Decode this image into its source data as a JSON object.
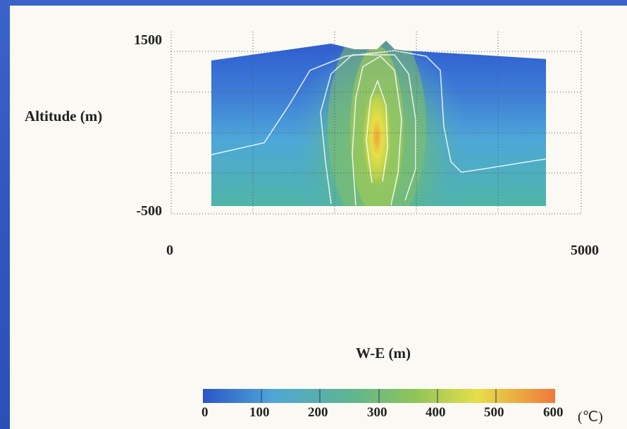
{
  "chart_data": {
    "type": "heatmap",
    "title": "",
    "xlabel": "W-E (m)",
    "ylabel": "Altitude (m)",
    "x_ticks": [
      "0",
      "5000"
    ],
    "y_ticks": [
      "1500",
      "-500"
    ],
    "xlim": [
      0,
      5000
    ],
    "ylim": [
      -500,
      1500
    ],
    "variable": "temperature",
    "colorbar": {
      "unit": "(℃)",
      "ticks": [
        "0",
        "100",
        "200",
        "300",
        "400",
        "500",
        "600"
      ],
      "range": [
        0,
        600
      ],
      "colors": [
        "#2a56c8",
        "#4fa6d6",
        "#5fb58f",
        "#8fc45a",
        "#e6df48",
        "#ef7a3b"
      ]
    },
    "contours_shown": true,
    "grid": true,
    "contour_levels_approx": [
      100,
      200,
      300,
      400
    ],
    "field_summary": {
      "peak_temperature_approx": 500,
      "peak_location_x_m": 2600,
      "peak_location_altitude_m": 500,
      "surface_altitude_m": 1400
    }
  }
}
